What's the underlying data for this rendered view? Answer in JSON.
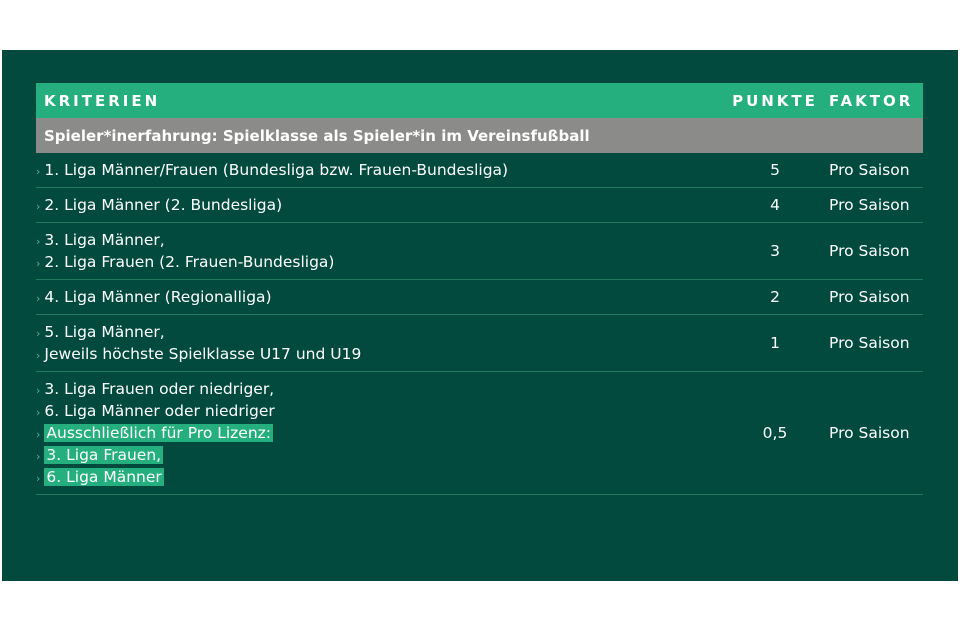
{
  "table": {
    "headers": {
      "criteria": "KRITERIEN",
      "points": "PUNKTE",
      "factor": "FAKTOR"
    },
    "section_title": "Spieler*inerfahrung: Spielklasse als Spieler*in im Vereinsfußball",
    "accent_color": "#25ae7e",
    "background_color": "#024a3e",
    "rows": [
      {
        "lines": [
          {
            "text": "1. Liga Männer/Frauen (Bundesliga bzw. Frauen-Bundesliga)"
          }
        ],
        "points": "5",
        "factor": "Pro Saison"
      },
      {
        "lines": [
          {
            "text": "2. Liga Männer (2. Bundesliga)"
          }
        ],
        "points": "4",
        "factor": "Pro Saison"
      },
      {
        "lines": [
          {
            "text": "3. Liga Männer,"
          },
          {
            "text": "2. Liga Frauen (2. Frauen-Bundesliga)"
          }
        ],
        "points": "3",
        "factor": "Pro Saison"
      },
      {
        "lines": [
          {
            "text": "4. Liga Männer (Regionalliga)"
          }
        ],
        "points": "2",
        "factor": "Pro Saison"
      },
      {
        "lines": [
          {
            "text": "5. Liga Männer,"
          },
          {
            "text": "Jeweils höchste Spielklasse U17 und U19"
          }
        ],
        "points": "1",
        "factor": "Pro Saison"
      },
      {
        "lines": [
          {
            "text": "3. Liga Frauen oder niedriger,"
          },
          {
            "text": "6. Liga Männer oder niedriger"
          },
          {
            "text": "Ausschließlich für Pro Lizenz:",
            "highlight": true
          },
          {
            "text": "3. Liga Frauen,",
            "highlight": true
          },
          {
            "text": "6. Liga Männer",
            "highlight": true
          }
        ],
        "points": "0,5",
        "factor": "Pro Saison"
      }
    ]
  }
}
